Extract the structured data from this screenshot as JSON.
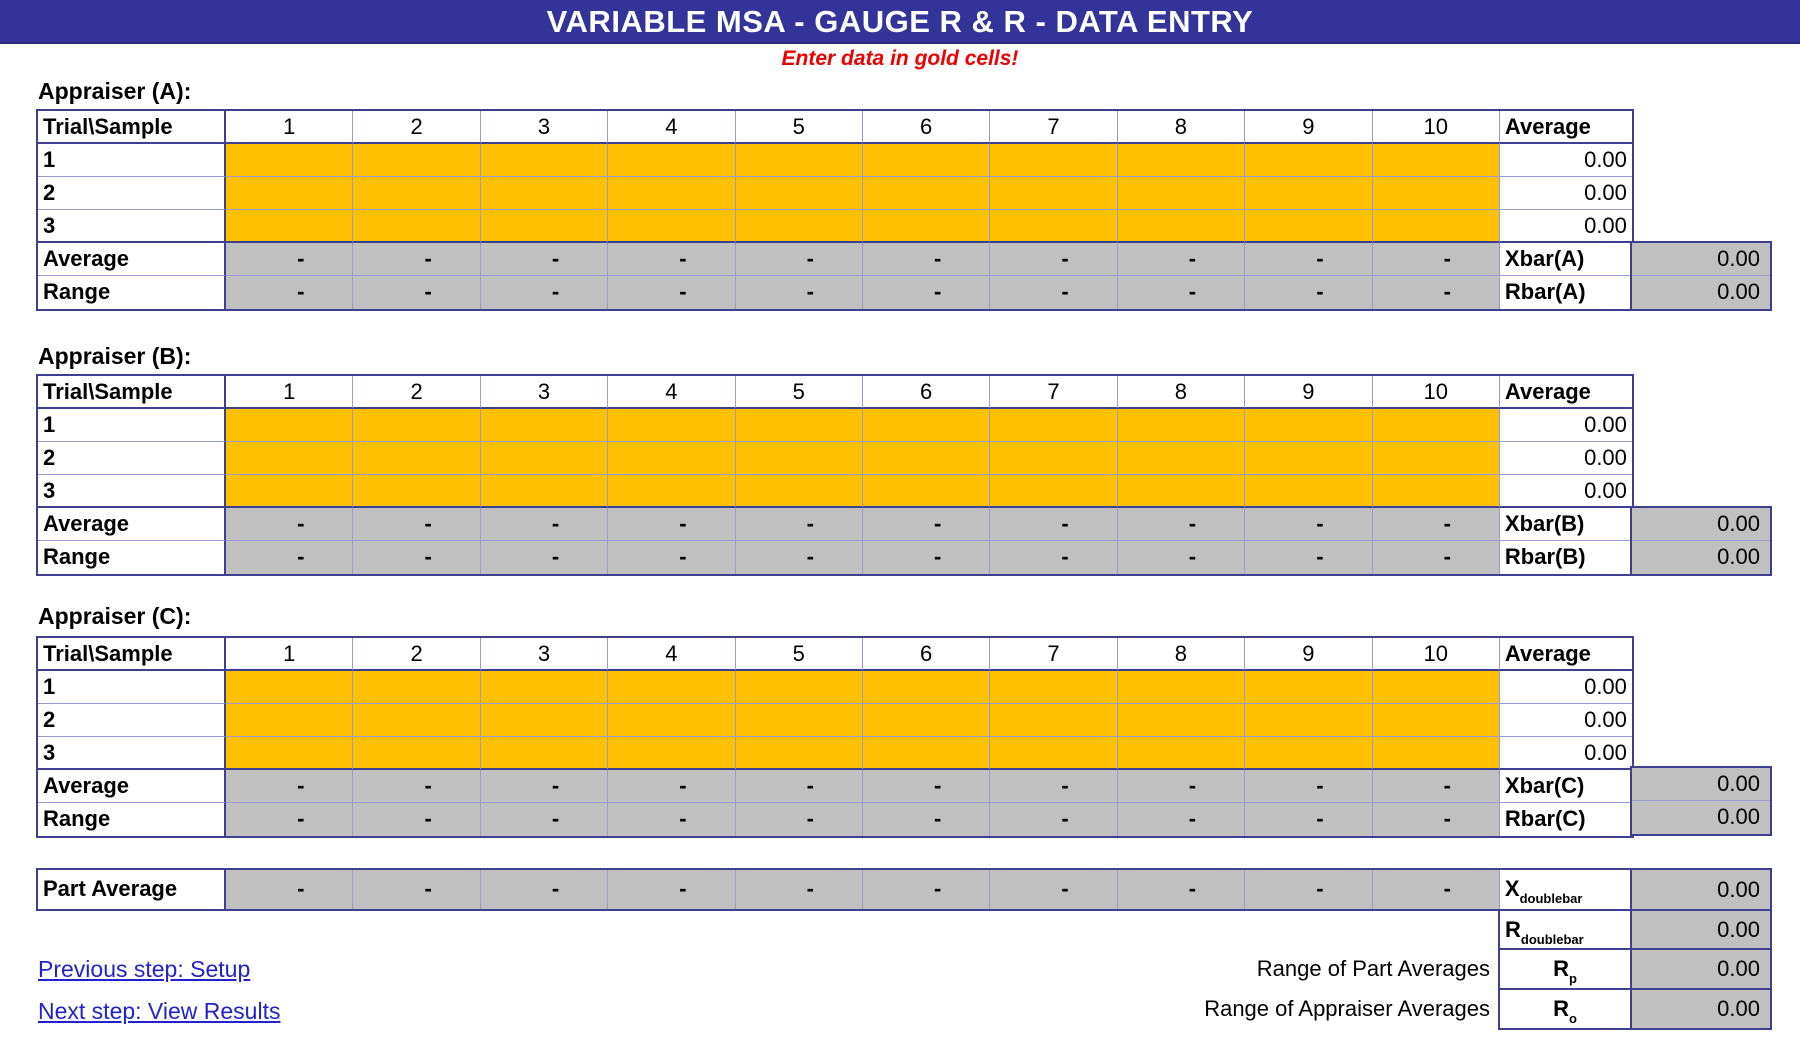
{
  "title": "VARIABLE MSA - GAUGE R & R - DATA ENTRY",
  "instruction": "Enter data in gold cells!",
  "colors": {
    "header_bar": "#333399",
    "gold_entry": "#FFC000",
    "computed_gray": "#C0C0C0",
    "instruction_red": "#EE0000",
    "link_blue": "#2222CC",
    "grid_thin": "#9A9ACE",
    "grid_thick": "#3F3F8F"
  },
  "table_template": {
    "corner_label": "Trial\\Sample",
    "sample_headers": [
      "1",
      "2",
      "3",
      "4",
      "5",
      "6",
      "7",
      "8",
      "9",
      "10"
    ],
    "average_header": "Average",
    "trial_labels": [
      "1",
      "2",
      "3"
    ],
    "average_row_label": "Average",
    "range_row_label": "Range",
    "dash": "-"
  },
  "appraisers": [
    {
      "id": "a",
      "label": "Appraiser (A):",
      "trial_averages": [
        "0.00",
        "0.00",
        "0.00"
      ],
      "xbar_label": "Xbar(A)",
      "xbar_value": "0.00",
      "rbar_label": "Rbar(A)",
      "rbar_value": "0.00"
    },
    {
      "id": "b",
      "label": "Appraiser (B):",
      "trial_averages": [
        "0.00",
        "0.00",
        "0.00"
      ],
      "xbar_label": "Xbar(B)",
      "xbar_value": "0.00",
      "rbar_label": "Rbar(B)",
      "rbar_value": "0.00"
    },
    {
      "id": "c",
      "label": "Appraiser (C):",
      "trial_averages": [
        "0.00",
        "0.00",
        "0.00"
      ],
      "xbar_label": "Xbar(C)",
      "xbar_value": "0.00",
      "rbar_label": "Rbar(C)",
      "rbar_value": "0.00"
    }
  ],
  "summary": {
    "part_average_label": "Part Average",
    "xdoublebar": {
      "base": "X",
      "sub": "doublebar",
      "value": "0.00"
    },
    "rdoublebar": {
      "base": "R",
      "sub": "doublebar",
      "value": "0.00"
    },
    "rp": {
      "caption": "Range of Part Averages",
      "base": "R",
      "sub": "p",
      "value": "0.00"
    },
    "ro": {
      "caption": "Range of Appraiser Averages",
      "base": "R",
      "sub": "o",
      "value": "0.00"
    }
  },
  "links": [
    {
      "label": "Previous step: Setup"
    },
    {
      "label": "Next step: View Results"
    }
  ]
}
